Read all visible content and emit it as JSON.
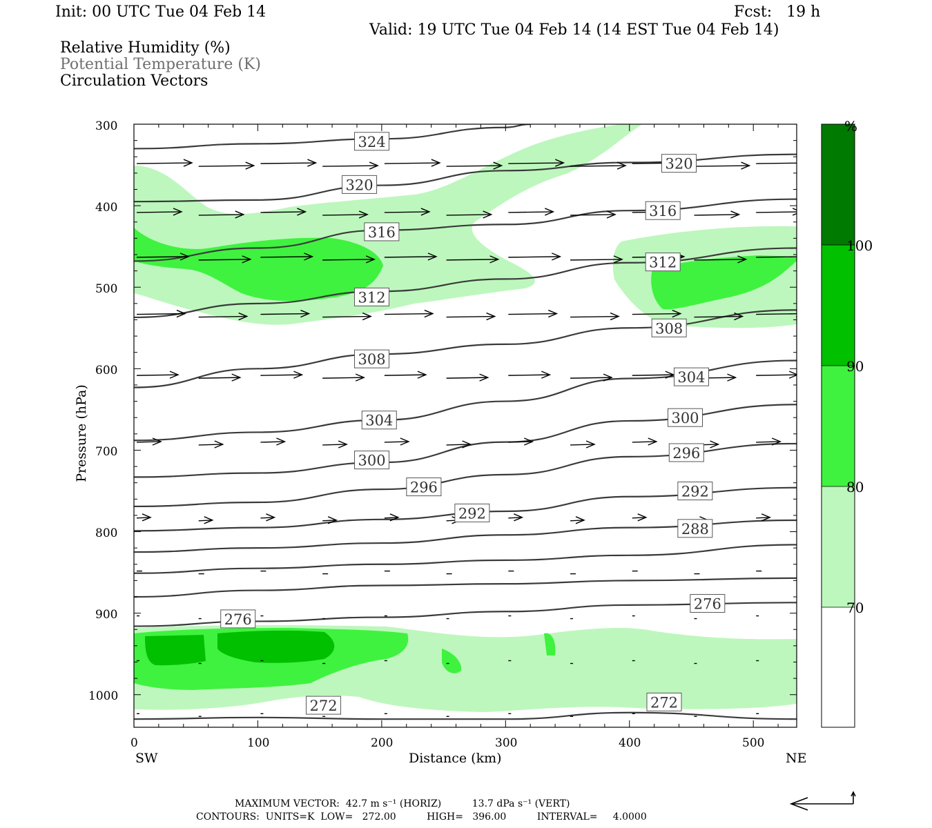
{
  "header": {
    "init": "Init: 00 UTC Tue 04 Feb 14",
    "fcst": "Fcst:   19 h",
    "valid": "Valid: 19 UTC Tue 04 Feb 14 (14 EST Tue 04 Feb 14)"
  },
  "titles": {
    "rh": "Relative Humidity (%)",
    "theta": "Potential Temperature (K)",
    "vectors": "Circulation Vectors"
  },
  "colors": {
    "rh70": "#bdf7bd",
    "rh80": "#3ff23f",
    "rh90": "#00c000",
    "rh100": "#007a00",
    "contour": "#3a3a3a"
  },
  "chart_data": {
    "type": "cross-section",
    "xlabel": "Distance (km)",
    "ylabel": "Pressure (hPa)",
    "xlim": [
      0,
      535
    ],
    "ylim": [
      300,
      1040
    ],
    "y_scale": "linear (inverted)",
    "x_ticks": [
      "0",
      "100",
      "200",
      "300",
      "400",
      "500"
    ],
    "y_ticks": [
      "300",
      "400",
      "500",
      "600",
      "700",
      "800",
      "900",
      "1000"
    ],
    "x_ends": {
      "left": "SW",
      "right": "NE"
    },
    "colorbar": {
      "unit": "%",
      "levels": [
        "70",
        "80",
        "90",
        "100"
      ]
    },
    "theta_contour_labels": [
      {
        "value": "324",
        "x": 192,
        "p": 321
      },
      {
        "value": "320",
        "x": 182,
        "p": 374
      },
      {
        "value": "320",
        "x": 440,
        "p": 348
      },
      {
        "value": "316",
        "x": 200,
        "p": 432
      },
      {
        "value": "316",
        "x": 427,
        "p": 406
      },
      {
        "value": "312",
        "x": 192,
        "p": 512
      },
      {
        "value": "312",
        "x": 427,
        "p": 469
      },
      {
        "value": "308",
        "x": 192,
        "p": 588
      },
      {
        "value": "308",
        "x": 432,
        "p": 550
      },
      {
        "value": "304",
        "x": 198,
        "p": 663
      },
      {
        "value": "304",
        "x": 450,
        "p": 610
      },
      {
        "value": "300",
        "x": 192,
        "p": 712
      },
      {
        "value": "300",
        "x": 445,
        "p": 660
      },
      {
        "value": "296",
        "x": 234,
        "p": 745
      },
      {
        "value": "296",
        "x": 446,
        "p": 703
      },
      {
        "value": "292",
        "x": 273,
        "p": 777
      },
      {
        "value": "292",
        "x": 453,
        "p": 750
      },
      {
        "value": "288",
        "x": 453,
        "p": 796
      },
      {
        "value": "276",
        "x": 84,
        "p": 907
      },
      {
        "value": "276",
        "x": 463,
        "p": 888
      },
      {
        "value": "272",
        "x": 153,
        "p": 1013
      },
      {
        "value": "272",
        "x": 428,
        "p": 1009
      }
    ],
    "theta_contours": [
      {
        "value": 324,
        "x": [
          0,
          100,
          200,
          300,
          320
        ],
        "p": [
          330,
          324,
          318,
          304,
          300
        ]
      },
      {
        "value": 320,
        "x": [
          0,
          100,
          200,
          300,
          400,
          535
        ],
        "p": [
          395,
          393,
          375,
          357,
          347,
          337
        ]
      },
      {
        "value": 316,
        "x": [
          0,
          100,
          200,
          300,
          400,
          535
        ],
        "p": [
          468,
          452,
          430,
          423,
          406,
          392
        ]
      },
      {
        "value": 312,
        "x": [
          0,
          100,
          200,
          300,
          400,
          535
        ],
        "p": [
          537,
          520,
          505,
          490,
          470,
          452
        ]
      },
      {
        "value": 308,
        "x": [
          0,
          100,
          200,
          300,
          400,
          535
        ],
        "p": [
          623,
          600,
          582,
          570,
          550,
          528
        ]
      },
      {
        "value": 304,
        "x": [
          0,
          100,
          200,
          300,
          400,
          535
        ],
        "p": [
          688,
          678,
          663,
          640,
          612,
          590
        ]
      },
      {
        "value": 300,
        "x": [
          0,
          100,
          200,
          300,
          400,
          535
        ],
        "p": [
          733,
          728,
          715,
          690,
          664,
          644
        ]
      },
      {
        "value": 296,
        "x": [
          0,
          100,
          200,
          300,
          400,
          535
        ],
        "p": [
          769,
          764,
          748,
          730,
          708,
          692
        ]
      },
      {
        "value": 292,
        "x": [
          0,
          100,
          200,
          300,
          400,
          535
        ],
        "p": [
          799,
          795,
          785,
          775,
          757,
          746
        ]
      },
      {
        "value": 288,
        "x": [
          0,
          100,
          200,
          300,
          400,
          535
        ],
        "p": [
          825,
          820,
          814,
          804,
          795,
          786
        ]
      },
      {
        "value": 284,
        "x": [
          0,
          100,
          200,
          300,
          400,
          535
        ],
        "p": [
          851,
          845,
          840,
          835,
          829,
          816
        ]
      },
      {
        "value": 280,
        "x": [
          0,
          100,
          200,
          300,
          400,
          535
        ],
        "p": [
          880,
          872,
          866,
          864,
          860,
          857
        ]
      },
      {
        "value": 276,
        "x": [
          0,
          100,
          200,
          300,
          400,
          535
        ],
        "p": [
          916,
          910,
          905,
          898,
          890,
          887
        ]
      },
      {
        "value": 272,
        "x": [
          0,
          100,
          200,
          300,
          400,
          535
        ],
        "p": [
          1030,
          1028,
          1030,
          1030,
          1022,
          1030
        ]
      }
    ],
    "vector_rows_p": [
      350,
      410,
      465,
      535,
      610,
      692,
      785,
      850,
      905,
      960,
      1025
    ],
    "vector_columns_x": [
      0,
      50,
      100,
      150,
      200,
      250,
      300,
      350,
      400,
      450,
      500,
      535
    ]
  },
  "footer": {
    "max_vector": "MAXIMUM VECTOR:  42.7 m s⁻¹ (HORIZ)          13.7 dPa s⁻¹ (VERT)",
    "contours": "CONTOURS:  UNITS=K  LOW=   272.00          HIGH=   396.00          INTERVAL=     4.0000"
  }
}
